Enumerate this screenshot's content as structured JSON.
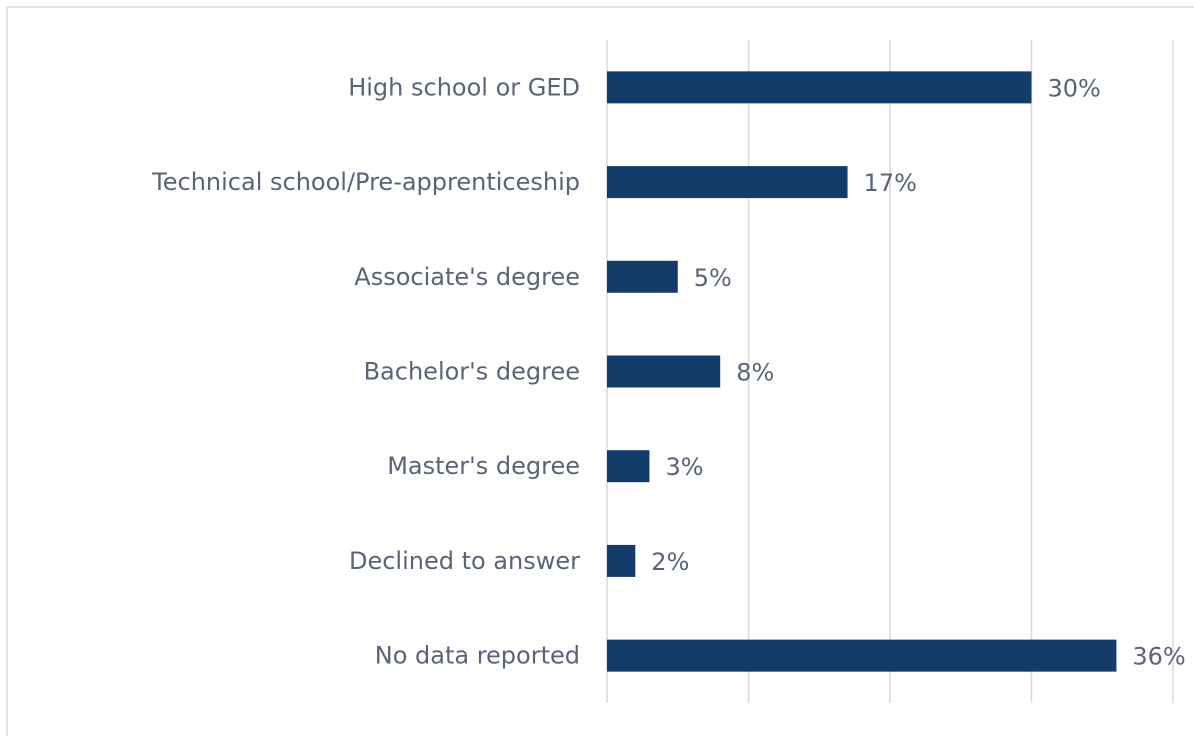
{
  "chart_data": {
    "type": "bar",
    "orientation": "horizontal",
    "categories": [
      "High school or GED",
      "Technical school/Pre-apprenticeship",
      "Associate's degree",
      "Bachelor's degree",
      "Master's degree",
      "Declined to answer",
      "No data reported"
    ],
    "values": [
      30,
      17,
      5,
      8,
      3,
      2,
      36
    ],
    "value_labels": [
      "30%",
      "17%",
      "5%",
      "8%",
      "3%",
      "2%",
      "36%"
    ],
    "color": "#133c6b",
    "xlim": [
      0,
      40
    ],
    "xticks": [
      0,
      10,
      20,
      30,
      40
    ],
    "grid": true
  }
}
